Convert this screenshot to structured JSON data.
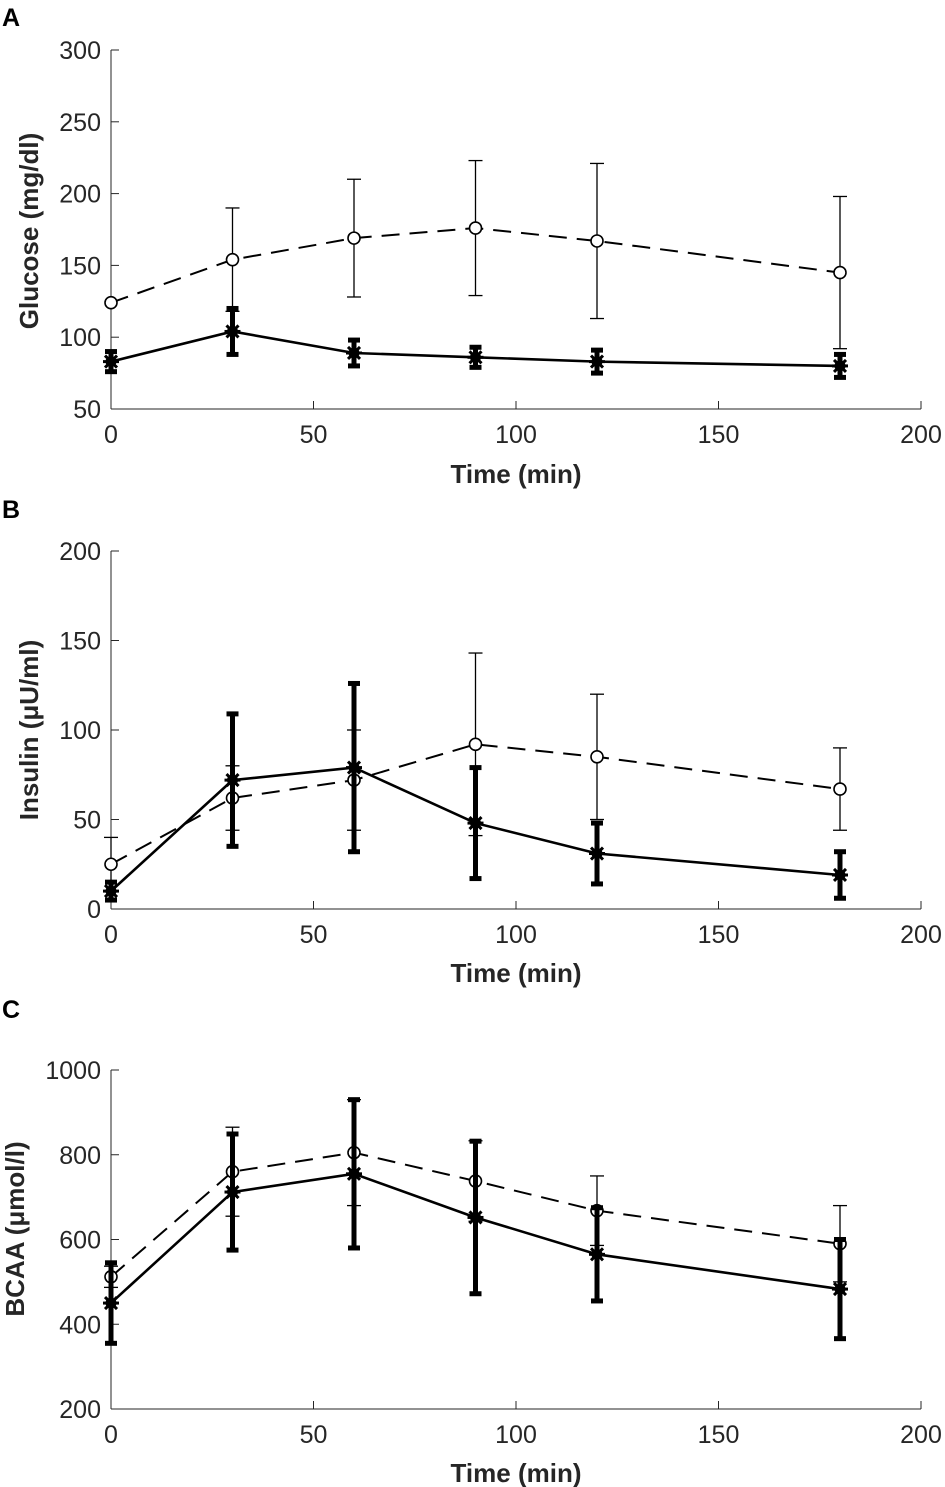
{
  "colors": {
    "line": "#000000",
    "axis": "#262626",
    "background": "#ffffff"
  },
  "chart_data": [
    {
      "panel": "A",
      "type": "line",
      "xlabel": "Time (min)",
      "ylabel": "Glucose (mg/dl)",
      "xlim": [
        0,
        200
      ],
      "ylim": [
        50,
        300
      ],
      "xticks": [
        0,
        50,
        100,
        150,
        200
      ],
      "yticks": [
        50,
        100,
        150,
        200,
        250,
        300
      ],
      "grid": false,
      "series": [
        {
          "name": "dashed-open-circle",
          "style": "dashed",
          "marker": "open-circle",
          "x": [
            0,
            30,
            60,
            90,
            120,
            180
          ],
          "y": [
            124,
            154,
            169,
            176,
            167,
            145
          ],
          "err": [
            0,
            36,
            41,
            47,
            54,
            53
          ]
        },
        {
          "name": "solid-filled",
          "style": "solid",
          "marker": "filled-star",
          "x": [
            0,
            30,
            60,
            90,
            120,
            180
          ],
          "y": [
            83,
            104,
            89,
            86,
            83,
            80
          ],
          "err": [
            7,
            16,
            9,
            7,
            8,
            8
          ]
        }
      ]
    },
    {
      "panel": "B",
      "type": "line",
      "xlabel": "Time (min)",
      "ylabel": "Insulin (μU/ml)",
      "xlim": [
        0,
        200
      ],
      "ylim": [
        0,
        200
      ],
      "xticks": [
        0,
        50,
        100,
        150,
        200
      ],
      "yticks": [
        0,
        50,
        100,
        150,
        200
      ],
      "grid": false,
      "series": [
        {
          "name": "dashed-open-circle",
          "style": "dashed",
          "marker": "open-circle",
          "x": [
            0,
            30,
            60,
            90,
            120,
            180
          ],
          "y": [
            25,
            62,
            72,
            92,
            85,
            67
          ],
          "err": [
            15,
            18,
            28,
            51,
            35,
            23
          ]
        },
        {
          "name": "solid-filled",
          "style": "solid",
          "marker": "filled-star",
          "x": [
            0,
            30,
            60,
            90,
            120,
            180
          ],
          "y": [
            10,
            72,
            79,
            48,
            31,
            19
          ],
          "err": [
            5,
            37,
            47,
            31,
            17,
            13
          ]
        }
      ]
    },
    {
      "panel": "C",
      "type": "line",
      "xlabel": "Time (min)",
      "ylabel": "BCAA (μmol/l)",
      "xlim": [
        0,
        200
      ],
      "ylim": [
        200,
        1000
      ],
      "xticks": [
        0,
        50,
        100,
        150,
        200
      ],
      "yticks": [
        200,
        400,
        600,
        800,
        1000
      ],
      "grid": false,
      "series": [
        {
          "name": "dashed-open-circle",
          "style": "dashed",
          "marker": "open-circle",
          "x": [
            0,
            30,
            60,
            90,
            120,
            180
          ],
          "y": [
            512,
            760,
            805,
            738,
            668,
            590
          ],
          "err": [
            25,
            105,
            125,
            95,
            82,
            90
          ]
        },
        {
          "name": "solid-filled",
          "style": "solid",
          "marker": "filled-star",
          "x": [
            0,
            30,
            60,
            90,
            120,
            180
          ],
          "y": [
            450,
            712,
            755,
            652,
            565,
            483
          ],
          "err": [
            95,
            137,
            175,
            180,
            110,
            117
          ]
        }
      ]
    }
  ]
}
